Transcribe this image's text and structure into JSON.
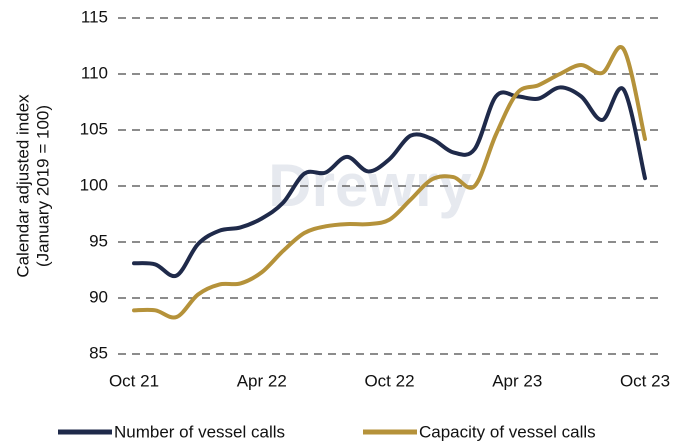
{
  "chart_data": {
    "type": "line",
    "y_label": [
      "Calendar adjusted index",
      "(January 2019 = 100)"
    ],
    "watermark": "Drewry",
    "categories": [
      "Oct 21",
      null,
      null,
      null,
      null,
      null,
      "Apr 22",
      null,
      null,
      null,
      null,
      null,
      "Oct 22",
      null,
      null,
      null,
      null,
      null,
      "Apr 23",
      null,
      null,
      null,
      null,
      null,
      "Oct 23"
    ],
    "series": [
      {
        "name": "Number of vessel calls",
        "color": "#1f2a4a",
        "values": [
          93.1,
          93.0,
          92.0,
          94.8,
          96.0,
          96.3,
          97.1,
          98.5,
          101.1,
          101.2,
          102.6,
          101.3,
          102.4,
          104.5,
          104.2,
          103.0,
          103.3,
          108.0,
          108.0,
          107.8,
          108.8,
          108.0,
          105.9,
          108.6,
          100.7
        ]
      },
      {
        "name": "Capacity of vessel calls",
        "color": "#b5923a",
        "values": [
          88.9,
          88.9,
          88.3,
          90.3,
          91.2,
          91.3,
          92.3,
          94.2,
          95.8,
          96.4,
          96.6,
          96.6,
          97.0,
          98.8,
          100.6,
          100.8,
          100.0,
          104.6,
          108.3,
          109.0,
          110.0,
          110.8,
          110.1,
          112.2,
          104.2
        ]
      }
    ],
    "ylim": [
      85,
      115
    ],
    "yticks": [
      85,
      90,
      95,
      100,
      105,
      110,
      115
    ],
    "grid": true,
    "legend": "bottom"
  }
}
